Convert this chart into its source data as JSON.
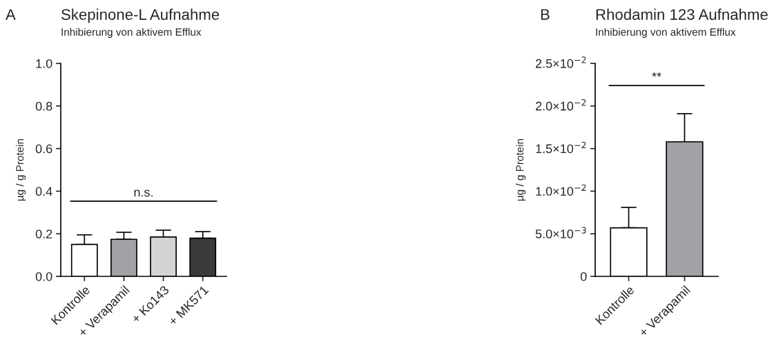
{
  "chart_data": [
    {
      "type": "bar",
      "title": "Skepinone-L Aufnahme",
      "subtitle": "Inhibierung von aktivem Efflux",
      "ylabel": "µg / g Protein",
      "categories": [
        "Kontrolle",
        "+ Verapamil",
        "+ Ko143",
        "+ MK571"
      ],
      "values": [
        0.15,
        0.174,
        0.185,
        0.179
      ],
      "colors": [
        "#ffffff",
        "#a2a2a6",
        "#d4d4d4",
        "#3a3a3a"
      ],
      "errors": [
        [
          0.15,
          0.195
        ],
        [
          0.174,
          0.207
        ],
        [
          0.185,
          0.217
        ],
        [
          0.179,
          0.21
        ]
      ],
      "ylim": [
        0,
        1.0
      ],
      "yticks": [
        {
          "value": 0,
          "label": "0.0"
        },
        0.2,
        0.4,
        0.6,
        0.8,
        {
          "value": 1.0,
          "label": "1.0"
        }
      ],
      "annotations": [
        "A"
      ],
      "ref_lines": [
        {
          "axis": "y",
          "value": 0.353,
          "label": "n.s."
        }
      ],
      "grid": false,
      "legend": false
    },
    {
      "type": "bar",
      "title": "Rhodamin 123 Aufnahme",
      "subtitle": "Inhibierung von aktivem Efflux",
      "ylabel": "µg / g Protein",
      "categories": [
        "Kontrolle",
        "+ Verapamil"
      ],
      "values": [
        0.0057,
        0.0158
      ],
      "colors": [
        "#ffffff",
        "#a2a2a6"
      ],
      "errors": [
        [
          0.0057,
          0.0081
        ],
        [
          0.0158,
          0.0191
        ]
      ],
      "ylim": [
        0,
        0.025
      ],
      "yticks": [
        0,
        {
          "value": 0.005,
          "label": "5.0×10$^{−3}$"
        },
        {
          "value": 0.01,
          "label": "1.0×10$^{−2}$"
        },
        {
          "value": 0.015,
          "label": "1.5×10$^{−2}$"
        },
        {
          "value": 0.02,
          "label": "2.0×10$^{−2}$"
        },
        {
          "value": 0.025,
          "label": "2.5×10$^{−2}$"
        }
      ],
      "annotations": [
        "B"
      ],
      "ref_lines": [
        {
          "axis": "y",
          "value": 0.0224,
          "label": "**"
        }
      ],
      "grid": false,
      "legend": false
    }
  ]
}
